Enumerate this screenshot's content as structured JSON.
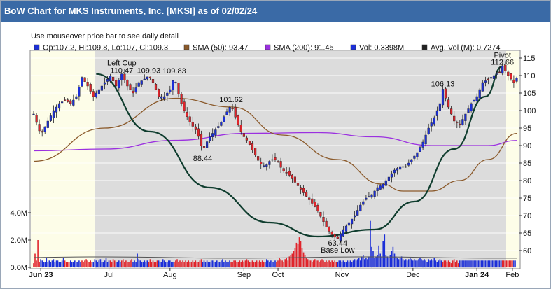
{
  "header": {
    "title": "BoW Chart for MKS Instruments, Inc. [MKSI] as of 02/02/24"
  },
  "hint": "Use mouseover price bar to see daily detail",
  "legend": [
    {
      "label": "Op:107.2, Hi:109.8, Lo:107, Cl:109.3",
      "color": "#1c2fd8"
    },
    {
      "label": "SMA (50): 93.47",
      "color": "#8b5a2b"
    },
    {
      "label": "SMA (200): 91.45",
      "color": "#9b30e0"
    },
    {
      "label": "Vol: 0.3398M",
      "color": "#1c2fd8"
    },
    {
      "label": "Avg. Vol (M): 0.7274",
      "color": "#222222"
    }
  ],
  "colors": {
    "up": "#1c2fd8",
    "down": "#e0242b",
    "sma50": "#8b5a2b",
    "sma200": "#9b30e0",
    "cup": "#0f3d2e",
    "shade": "#dcdcdc",
    "highlight": "#fdfde8"
  },
  "chart_data": {
    "type": "candlestick",
    "ylim": [
      55,
      117
    ],
    "yticks": [
      60,
      65,
      70,
      75,
      80,
      85,
      90,
      95,
      100,
      105,
      110,
      115
    ],
    "volume_ticks": [
      "0.0M",
      "2.0M",
      "4.0M"
    ],
    "volume_ylim": [
      0,
      4.0
    ],
    "months": [
      "Jun 23",
      "Jul",
      "Aug",
      "Sep",
      "Oct",
      "Nov",
      "Dec",
      "Jan 24",
      "Feb"
    ],
    "annotations": [
      {
        "text": "Left Cup",
        "x": 62,
        "y": 110.5
      },
      {
        "text": "110.47",
        "x": 62,
        "y": 110.47
      },
      {
        "text": "109.93",
        "x": 81,
        "y": 109.93
      },
      {
        "text": "109.83",
        "x": 99,
        "y": 109.83
      },
      {
        "text": "88.44",
        "x": 119,
        "y": 88.44
      },
      {
        "text": "101.62",
        "x": 139,
        "y": 101.62
      },
      {
        "text": "63.44",
        "x": 214,
        "y": 63.44
      },
      {
        "text": "Base Low",
        "x": 214,
        "y": 63.44
      },
      {
        "text": "106.13",
        "x": 288,
        "y": 106.13
      },
      {
        "text": "Pivot",
        "x": 330,
        "y": 112.66
      },
      {
        "text": "112.66",
        "x": 330,
        "y": 112.66
      }
    ],
    "anchors": [
      [
        0,
        99
      ],
      [
        5,
        93
      ],
      [
        10,
        97
      ],
      [
        14,
        100
      ],
      [
        18,
        102
      ],
      [
        22,
        103
      ],
      [
        26,
        102
      ],
      [
        30,
        104
      ],
      [
        34,
        109.5
      ],
      [
        38,
        107
      ],
      [
        42,
        104
      ],
      [
        46,
        106
      ],
      [
        50,
        108
      ],
      [
        54,
        109.93
      ],
      [
        58,
        107
      ],
      [
        62,
        110.47
      ],
      [
        66,
        107
      ],
      [
        70,
        105
      ],
      [
        74,
        108
      ],
      [
        78,
        109
      ],
      [
        81,
        109.93
      ],
      [
        84,
        108
      ],
      [
        88,
        104
      ],
      [
        92,
        104
      ],
      [
        96,
        106
      ],
      [
        99,
        109.83
      ],
      [
        103,
        103
      ],
      [
        107,
        99
      ],
      [
        111,
        96
      ],
      [
        115,
        94
      ],
      [
        119,
        88.44
      ],
      [
        123,
        92
      ],
      [
        127,
        94
      ],
      [
        131,
        96
      ],
      [
        135,
        99
      ],
      [
        139,
        101.62
      ],
      [
        143,
        97
      ],
      [
        147,
        93
      ],
      [
        151,
        91
      ],
      [
        155,
        88
      ],
      [
        159,
        85
      ],
      [
        163,
        84
      ],
      [
        167,
        86
      ],
      [
        171,
        86
      ],
      [
        175,
        83
      ],
      [
        179,
        82
      ],
      [
        183,
        80
      ],
      [
        187,
        78
      ],
      [
        191,
        76
      ],
      [
        195,
        74
      ],
      [
        199,
        72
      ],
      [
        203,
        69
      ],
      [
        207,
        66
      ],
      [
        211,
        64
      ],
      [
        214,
        63.44
      ],
      [
        218,
        66
      ],
      [
        222,
        68
      ],
      [
        226,
        70
      ],
      [
        230,
        73
      ],
      [
        234,
        75
      ],
      [
        238,
        76
      ],
      [
        242,
        78
      ],
      [
        246,
        79
      ],
      [
        250,
        81
      ],
      [
        254,
        83
      ],
      [
        258,
        84
      ],
      [
        262,
        84
      ],
      [
        266,
        86
      ],
      [
        270,
        88
      ],
      [
        274,
        91
      ],
      [
        278,
        95
      ],
      [
        282,
        98
      ],
      [
        286,
        102
      ],
      [
        288,
        106.13
      ],
      [
        292,
        101
      ],
      [
        296,
        97
      ],
      [
        300,
        96
      ],
      [
        304,
        99
      ],
      [
        308,
        102
      ],
      [
        312,
        104
      ],
      [
        316,
        108
      ],
      [
        320,
        109
      ],
      [
        324,
        110
      ],
      [
        328,
        111
      ],
      [
        330,
        112.66
      ],
      [
        334,
        110
      ],
      [
        338,
        108
      ],
      [
        340,
        109.3
      ]
    ],
    "sma50": [
      [
        0,
        85.5
      ],
      [
        50,
        95
      ],
      [
        100,
        103.5
      ],
      [
        140,
        101
      ],
      [
        175,
        93
      ],
      [
        214,
        86
      ],
      [
        245,
        79
      ],
      [
        260,
        77
      ],
      [
        280,
        77
      ],
      [
        300,
        80
      ],
      [
        320,
        86
      ],
      [
        340,
        93.47
      ]
    ],
    "sma200": [
      [
        0,
        88.5
      ],
      [
        50,
        89
      ],
      [
        100,
        91.5
      ],
      [
        150,
        93.5
      ],
      [
        200,
        93.7
      ],
      [
        240,
        92.5
      ],
      [
        280,
        90
      ],
      [
        320,
        90
      ],
      [
        340,
        91.45
      ]
    ],
    "cup": [
      [
        44,
        110.47
      ],
      [
        82,
        94
      ],
      [
        124,
        78
      ],
      [
        166,
        68
      ],
      [
        200,
        64
      ],
      [
        240,
        66
      ],
      [
        268,
        74
      ],
      [
        296,
        89
      ],
      [
        318,
        104
      ],
      [
        330,
        112.66
      ]
    ],
    "volume_bars": [
      0.3,
      1.0,
      0.5,
      2.0,
      0.4,
      0.6,
      0.5,
      0.4,
      0.4,
      0.7,
      0.4,
      0.5,
      0.4,
      0.5,
      0.6,
      0.4,
      0.5,
      0.5,
      0.4,
      0.4,
      0.5,
      0.7,
      0.5,
      0.4,
      0.4,
      0.4,
      0.5,
      0.4,
      0.4,
      0.5,
      0.4,
      0.4,
      0.5,
      0.4,
      0.5,
      0.4,
      0.5,
      0.6,
      0.5,
      0.4,
      0.5,
      0.4,
      0.4,
      0.6,
      0.5,
      0.4,
      0.5,
      0.6,
      0.4,
      0.4,
      0.5,
      0.7,
      0.4,
      0.5,
      0.5,
      0.4,
      0.6,
      0.5,
      0.4,
      0.4,
      0.5,
      0.4,
      0.5,
      0.6,
      0.4,
      0.5,
      0.4,
      0.4,
      0.5,
      0.6,
      0.4,
      0.5,
      0.4,
      1.0,
      0.6,
      0.5,
      0.4,
      0.4,
      0.5,
      0.4,
      0.5,
      0.4,
      0.6,
      0.4,
      0.5,
      0.4,
      0.4,
      0.5,
      0.5,
      0.4,
      0.4,
      0.6,
      0.5,
      0.4,
      0.4,
      0.5,
      0.5,
      0.4,
      0.4,
      0.4,
      0.5,
      0.6,
      0.4,
      0.5,
      0.4,
      0.5,
      0.4,
      0.5,
      0.4,
      0.5,
      0.4,
      0.4,
      0.5,
      0.4,
      0.5,
      0.4,
      0.4,
      0.5,
      0.6,
      0.4,
      0.5,
      0.4,
      0.5,
      0.4,
      0.4,
      0.5,
      0.5,
      0.4,
      0.4,
      0.5,
      0.4,
      0.4,
      0.5,
      0.6,
      0.4,
      0.5,
      0.4,
      0.4,
      0.5,
      0.4,
      0.4,
      0.5,
      0.5,
      0.4,
      0.4,
      0.5,
      0.4,
      0.5,
      0.4,
      0.5,
      0.6,
      0.5,
      0.4,
      0.4,
      0.5,
      0.4,
      0.4,
      0.5,
      0.4,
      0.5,
      0.4,
      0.5,
      0.4,
      0.4,
      0.6,
      0.5,
      0.4,
      0.5,
      0.4,
      0.4,
      0.5,
      0.4,
      0.5,
      0.7,
      0.6,
      0.5,
      0.4,
      0.6,
      0.7,
      0.5,
      0.8,
      0.9,
      1.0,
      1.2,
      1.4,
      1.8,
      1.7,
      2.2,
      1.9,
      1.4,
      1.1,
      0.9,
      0.7,
      0.6,
      0.5,
      0.5,
      0.4,
      0.5,
      0.6,
      0.5,
      0.5,
      0.4,
      0.5,
      0.6,
      0.5,
      0.4,
      0.5,
      0.4,
      0.5,
      0.4,
      0.5,
      0.4,
      0.5,
      0.4,
      0.4,
      0.5,
      0.5,
      0.4,
      0.5,
      0.4,
      0.4,
      0.5,
      0.4,
      0.5,
      0.4,
      0.5,
      0.6,
      0.5,
      0.6,
      0.7,
      0.5,
      0.8,
      0.9,
      0.6,
      0.7,
      0.6,
      0.8,
      3.4,
      1.5,
      1.2,
      0.7,
      0.8,
      0.9,
      1.6,
      1.0,
      0.8,
      1.9,
      2.4,
      0.9,
      0.8,
      0.7,
      0.9,
      1.2,
      1.5,
      1.0,
      0.8,
      0.7,
      0.6,
      0.7,
      0.8,
      0.6,
      0.5,
      0.6,
      0.5,
      0.6,
      0.7,
      0.6,
      0.5,
      0.6,
      0.5,
      0.5,
      0.6,
      0.7,
      0.6,
      0.5,
      0.6,
      0.5,
      0.4,
      0.6,
      0.5,
      0.6,
      0.5,
      0.7,
      0.5,
      0.4,
      0.5,
      0.6,
      0.5,
      0.4,
      0.5,
      0.5,
      0.4,
      0.5,
      0.4,
      0.3,
      0.5,
      0.6,
      0.4,
      0.5,
      0.3
    ]
  }
}
